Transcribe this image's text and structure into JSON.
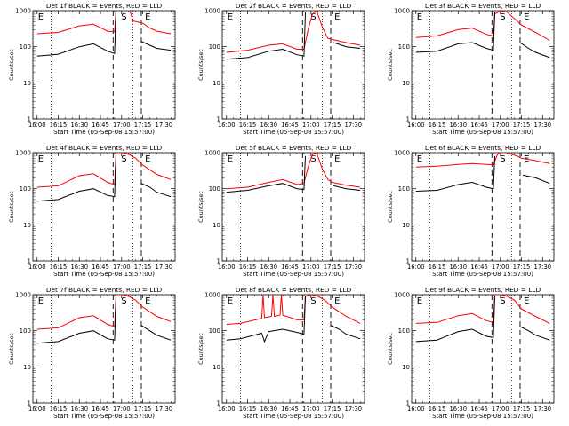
{
  "chart_data": [
    {
      "type": "line",
      "title": "Det 1f BLACK = Events, RED = LLD",
      "xlabel": "Start Time (05-Sep-08 15:57:00)",
      "ylabel": "Counts/sec",
      "yscale": "log",
      "ylim": [
        1,
        1000
      ],
      "x_ticks": [
        "16:00",
        "16:15",
        "16:30",
        "16:45",
        "17:00",
        "17:15",
        "17:30"
      ],
      "markers": [
        "E",
        "S",
        "E"
      ],
      "series": [
        {
          "color": "#ff0000",
          "x": [
            "16:00",
            "16:15",
            "16:30",
            "16:40",
            "16:50",
            "16:55",
            "16:56",
            "16:58",
            "17:00",
            "17:06",
            "17:08",
            "17:15",
            "17:20",
            "17:25",
            "17:35"
          ],
          "y": [
            230,
            250,
            380,
            420,
            270,
            260,
            1000,
            null,
            null,
            1000,
            520,
            450,
            330,
            270,
            230
          ]
        },
        {
          "color": "#000000",
          "x": [
            "16:00",
            "16:15",
            "16:30",
            "16:40",
            "16:50",
            "16:55",
            "16:56",
            "17:13",
            "17:14",
            "17:20",
            "17:25",
            "17:35"
          ],
          "y": [
            55,
            62,
            100,
            120,
            75,
            65,
            1000,
            null,
            140,
            110,
            90,
            80
          ]
        }
      ]
    },
    {
      "type": "line",
      "title": "Det 2f BLACK = Events, RED = LLD",
      "xlabel": "Start Time (05-Sep-08 15:57:00)",
      "ylabel": "Counts/sec",
      "yscale": "log",
      "ylim": [
        1,
        1000
      ],
      "x_ticks": [
        "16:00",
        "16:15",
        "16:30",
        "16:45",
        "17:00",
        "17:15",
        "17:30"
      ],
      "markers": [
        "E",
        "S",
        "E"
      ],
      "series": [
        {
          "color": "#ff0000",
          "x": [
            "16:00",
            "16:15",
            "16:30",
            "16:40",
            "16:50",
            "16:55",
            "16:58",
            "17:01",
            "17:04",
            "17:08",
            "17:12",
            "17:15",
            "17:25",
            "17:35"
          ],
          "y": [
            70,
            80,
            110,
            120,
            85,
            85,
            300,
            800,
            1000,
            350,
            170,
            160,
            130,
            110
          ]
        },
        {
          "color": "#000000",
          "x": [
            "16:00",
            "16:15",
            "16:30",
            "16:40",
            "16:50",
            "16:55",
            "16:56",
            "17:15",
            "17:16",
            "17:25",
            "17:35"
          ],
          "y": [
            45,
            50,
            75,
            85,
            60,
            55,
            900,
            null,
            130,
            100,
            90
          ]
        }
      ]
    },
    {
      "type": "line",
      "title": "Det 3f BLACK = Events, RED = LLD",
      "xlabel": "Start Time (05-Sep-08 15:57:00)",
      "ylabel": "Counts/sec",
      "yscale": "log",
      "ylim": [
        1,
        1000
      ],
      "x_ticks": [
        "16:00",
        "16:15",
        "16:30",
        "16:45",
        "17:00",
        "17:15",
        "17:30"
      ],
      "markers": [
        "E",
        "S",
        "E"
      ],
      "series": [
        {
          "color": "#ff0000",
          "x": [
            "16:00",
            "16:15",
            "16:30",
            "16:40",
            "16:50",
            "16:55",
            "16:56",
            "17:00",
            "17:05",
            "17:10",
            "17:15",
            "17:25",
            "17:35"
          ],
          "y": [
            180,
            200,
            300,
            330,
            220,
            200,
            800,
            1000,
            900,
            600,
            400,
            250,
            150
          ]
        },
        {
          "color": "#000000",
          "x": [
            "16:00",
            "16:15",
            "16:30",
            "16:40",
            "16:50",
            "16:55",
            "16:56",
            "17:13",
            "17:14",
            "17:20",
            "17:25",
            "17:35"
          ],
          "y": [
            70,
            75,
            120,
            130,
            90,
            80,
            900,
            null,
            130,
            90,
            70,
            50
          ]
        }
      ]
    },
    {
      "type": "line",
      "title": "Det 4f BLACK = Events, RED = LLD",
      "xlabel": "Start Time (05-Sep-08 15:57:00)",
      "ylabel": "Counts/sec",
      "yscale": "log",
      "ylim": [
        1,
        1000
      ],
      "x_ticks": [
        "16:00",
        "16:15",
        "16:30",
        "16:45",
        "17:00",
        "17:15",
        "17:30"
      ],
      "markers": [
        "E",
        "S",
        "E"
      ],
      "series": [
        {
          "color": "#ff0000",
          "x": [
            "16:00",
            "16:15",
            "16:30",
            "16:40",
            "16:50",
            "16:55",
            "16:56",
            "17:00",
            "17:05",
            "17:10",
            "17:15",
            "17:25",
            "17:35"
          ],
          "y": [
            110,
            120,
            230,
            260,
            150,
            130,
            1000,
            1000,
            900,
            700,
            450,
            250,
            180
          ]
        },
        {
          "color": "#000000",
          "x": [
            "16:00",
            "16:15",
            "16:30",
            "16:40",
            "16:50",
            "16:55",
            "16:56",
            "17:13",
            "17:14",
            "17:20",
            "17:25",
            "17:35"
          ],
          "y": [
            45,
            50,
            85,
            100,
            65,
            60,
            900,
            null,
            140,
            110,
            80,
            60
          ]
        }
      ]
    },
    {
      "type": "line",
      "title": "Det 5f BLACK = Events, RED = LLD",
      "xlabel": "Start Time (05-Sep-08 15:57:00)",
      "ylabel": "Counts/sec",
      "yscale": "log",
      "ylim": [
        1,
        1000
      ],
      "x_ticks": [
        "16:00",
        "16:15",
        "16:30",
        "16:45",
        "17:00",
        "17:15",
        "17:30"
      ],
      "markers": [
        "E",
        "S",
        "E"
      ],
      "series": [
        {
          "color": "#ff0000",
          "x": [
            "16:00",
            "16:15",
            "16:30",
            "16:40",
            "16:50",
            "16:55",
            "16:58",
            "17:01",
            "17:04",
            "17:08",
            "17:12",
            "17:15",
            "17:25",
            "17:35"
          ],
          "y": [
            100,
            110,
            150,
            180,
            130,
            140,
            400,
            900,
            1000,
            350,
            180,
            150,
            125,
            110
          ]
        },
        {
          "color": "#000000",
          "x": [
            "16:00",
            "16:15",
            "16:30",
            "16:40",
            "16:50",
            "16:55",
            "16:56",
            "17:15",
            "17:16",
            "17:25",
            "17:35"
          ],
          "y": [
            80,
            90,
            120,
            140,
            100,
            95,
            800,
            null,
            120,
            100,
            90
          ]
        }
      ]
    },
    {
      "type": "line",
      "title": "Det 6f BLACK = Events, RED = LLD",
      "xlabel": "Start Time (05-Sep-08 15:57:00)",
      "ylabel": "Counts/sec",
      "yscale": "log",
      "ylim": [
        1,
        1000
      ],
      "x_ticks": [
        "16:00",
        "16:15",
        "16:30",
        "16:45",
        "17:00",
        "17:15",
        "17:30"
      ],
      "markers": [
        "E",
        "S",
        "E"
      ],
      "series": [
        {
          "color": "#ff0000",
          "x": [
            "16:00",
            "16:15",
            "16:30",
            "16:40",
            "16:50",
            "16:55",
            "16:58",
            "17:00",
            "17:04",
            "17:08",
            "17:12",
            "17:15",
            "17:25",
            "17:35"
          ],
          "y": [
            400,
            420,
            470,
            500,
            470,
            460,
            900,
            1000,
            1000,
            900,
            800,
            700,
            600,
            500
          ]
        },
        {
          "color": "#000000",
          "x": [
            "16:00",
            "16:15",
            "16:30",
            "16:40",
            "16:50",
            "16:55",
            "16:56",
            "17:15",
            "17:16",
            "17:25",
            "17:35"
          ],
          "y": [
            85,
            90,
            130,
            150,
            110,
            100,
            800,
            null,
            240,
            200,
            140
          ]
        }
      ]
    },
    {
      "type": "line",
      "title": "Det 7f BLACK = Events, RED = LLD",
      "xlabel": "Start Time (05-Sep-08 15:57:00)",
      "ylabel": "Counts/sec",
      "yscale": "log",
      "ylim": [
        1,
        1000
      ],
      "x_ticks": [
        "16:00",
        "16:15",
        "16:30",
        "16:45",
        "17:00",
        "17:15",
        "17:30"
      ],
      "markers": [
        "E",
        "S",
        "E"
      ],
      "series": [
        {
          "color": "#ff0000",
          "x": [
            "16:00",
            "16:15",
            "16:30",
            "16:40",
            "16:50",
            "16:55",
            "16:56",
            "17:00",
            "17:05",
            "17:10",
            "17:15",
            "17:25",
            "17:35"
          ],
          "y": [
            110,
            120,
            230,
            260,
            150,
            130,
            1000,
            1000,
            900,
            700,
            450,
            250,
            180
          ]
        },
        {
          "color": "#000000",
          "x": [
            "16:00",
            "16:15",
            "16:30",
            "16:40",
            "16:50",
            "16:55",
            "16:56",
            "17:13",
            "17:14",
            "17:20",
            "17:25",
            "17:35"
          ],
          "y": [
            45,
            50,
            85,
            100,
            60,
            55,
            900,
            null,
            140,
            100,
            75,
            55
          ]
        }
      ]
    },
    {
      "type": "line",
      "title": "Det 8f BLACK = Events, RED = LLD",
      "xlabel": "Start Time (05-Sep-08 15:57:00)",
      "ylabel": "Counts/sec",
      "yscale": "log",
      "ylim": [
        1,
        1000
      ],
      "x_ticks": [
        "16:00",
        "16:15",
        "16:30",
        "16:45",
        "17:00",
        "17:15",
        "17:30"
      ],
      "markers": [
        "E",
        "S",
        "E"
      ],
      "series": [
        {
          "color": "#ff0000",
          "x": [
            "16:00",
            "16:10",
            "16:25",
            "16:26",
            "16:27",
            "16:32",
            "16:33",
            "16:34",
            "16:38",
            "16:39",
            "16:40",
            "16:50",
            "16:55",
            "16:56",
            "17:00",
            "17:05",
            "17:10",
            "17:15",
            "17:25",
            "17:35"
          ],
          "y": [
            150,
            160,
            220,
            1000,
            230,
            250,
            1000,
            250,
            270,
            1000,
            270,
            200,
            200,
            900,
            1000,
            900,
            700,
            450,
            250,
            160
          ]
        },
        {
          "color": "#000000",
          "x": [
            "16:00",
            "16:10",
            "16:25",
            "16:27",
            "16:30",
            "16:40",
            "16:50",
            "16:55",
            "16:56",
            "17:13",
            "17:14",
            "17:20",
            "17:25",
            "17:35"
          ],
          "y": [
            55,
            60,
            85,
            50,
            95,
            110,
            90,
            80,
            900,
            null,
            140,
            110,
            80,
            60
          ]
        }
      ]
    },
    {
      "type": "line",
      "title": "Det 9f BLACK = Events, RED = LLD",
      "xlabel": "Start Time (05-Sep-08 15:57:00)",
      "ylabel": "Counts/sec",
      "yscale": "log",
      "ylim": [
        1,
        1000
      ],
      "x_ticks": [
        "16:00",
        "16:15",
        "16:30",
        "16:45",
        "17:00",
        "17:15",
        "17:30"
      ],
      "markers": [
        "E",
        "S",
        "E"
      ],
      "series": [
        {
          "color": "#ff0000",
          "x": [
            "16:00",
            "16:15",
            "16:30",
            "16:40",
            "16:50",
            "16:55",
            "16:56",
            "17:00",
            "17:05",
            "17:10",
            "17:15",
            "17:25",
            "17:35"
          ],
          "y": [
            160,
            170,
            260,
            300,
            190,
            170,
            1000,
            1000,
            900,
            700,
            400,
            250,
            160
          ]
        },
        {
          "color": "#000000",
          "x": [
            "16:00",
            "16:15",
            "16:30",
            "16:40",
            "16:50",
            "16:55",
            "16:56",
            "17:13",
            "17:14",
            "17:20",
            "17:25",
            "17:35"
          ],
          "y": [
            50,
            55,
            95,
            110,
            70,
            65,
            900,
            null,
            130,
            100,
            75,
            55
          ]
        }
      ]
    }
  ]
}
